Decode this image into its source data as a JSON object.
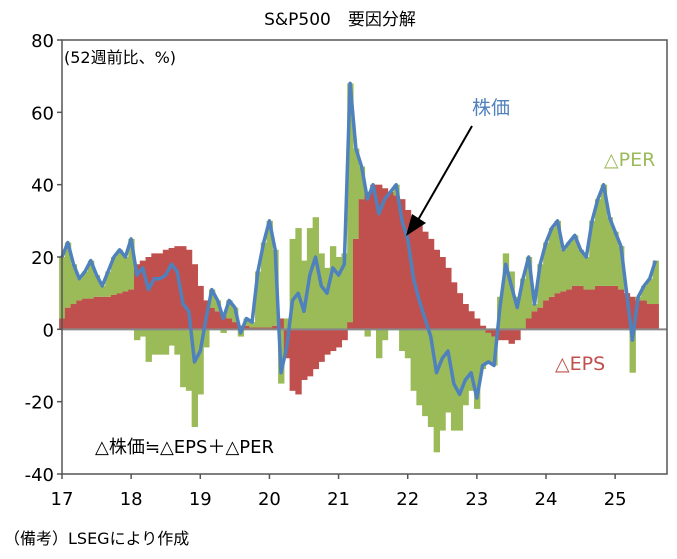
{
  "chart_data": {
    "type": "bar",
    "title": "S&P500　要因分解",
    "unit_note": "(52週前比、%)",
    "ylim": [
      -40,
      80
    ],
    "y_ticks": [
      "80",
      "60",
      "40",
      "20",
      "0",
      "-20",
      "-40"
    ],
    "y_tick_values": [
      80,
      60,
      40,
      20,
      0,
      -20,
      -40
    ],
    "x_ticks": [
      "17",
      "18",
      "19",
      "20",
      "21",
      "22",
      "23",
      "24",
      "25"
    ],
    "x_tick_values": [
      2017,
      2018,
      2019,
      2020,
      2021,
      2022,
      2023,
      2024,
      2025
    ],
    "xlim": [
      2017,
      2025.75
    ],
    "x_start": 2017,
    "x_step_months": 1,
    "series": [
      {
        "name": "株価",
        "kind": "line",
        "color": "#4f81bd",
        "values": [
          20,
          24,
          18,
          14,
          16,
          19,
          15,
          12,
          16,
          20,
          22,
          20,
          25,
          15,
          17,
          11,
          14,
          14,
          15,
          18,
          16,
          7,
          5,
          -9,
          -6,
          3,
          11,
          8,
          3,
          8,
          6,
          -1,
          3,
          2,
          16,
          24,
          30,
          22,
          -12,
          -5,
          8,
          10,
          5,
          15,
          20,
          12,
          10,
          17,
          15,
          18,
          68,
          50,
          45,
          36,
          40,
          32,
          36,
          38,
          40,
          30,
          25,
          14,
          8,
          3,
          -2,
          -12,
          -8,
          -6,
          -15,
          -18,
          -14,
          -12,
          -19,
          -10,
          -9,
          -10,
          6,
          18,
          12,
          6,
          14,
          20,
          7,
          18,
          24,
          28,
          30,
          22,
          24,
          26,
          22,
          20,
          30,
          36,
          40,
          31,
          27,
          23,
          10,
          -3,
          9,
          12,
          14,
          19
        ]
      },
      {
        "name": "△EPS",
        "kind": "bar",
        "color": "#c0504d",
        "values": [
          3,
          6,
          7,
          8,
          8.5,
          8.5,
          9,
          9,
          9,
          9.5,
          10,
          10.5,
          11,
          18,
          19,
          20,
          21,
          21,
          22,
          22.5,
          23,
          23,
          22,
          18,
          12,
          8,
          6,
          5,
          4,
          3,
          2,
          1,
          1,
          0.5,
          0.5,
          0.5,
          0.5,
          1,
          3,
          -8,
          -17,
          -18,
          -14,
          -13,
          -11,
          -9,
          -7,
          -6,
          -5,
          -3,
          2,
          25,
          36,
          38,
          40,
          40,
          39,
          38,
          37,
          36,
          33,
          31,
          29,
          27,
          25,
          22,
          20,
          17,
          13,
          10,
          7,
          5,
          3,
          1,
          -1,
          -2,
          -3,
          -3,
          -4,
          -3,
          0,
          3,
          5,
          6,
          8,
          9,
          10,
          10.5,
          11,
          12,
          12,
          11,
          11,
          12,
          12,
          12,
          12,
          11,
          10,
          9,
          8,
          8,
          7,
          7
        ]
      },
      {
        "name": "△PER",
        "kind": "bar",
        "color": "#9bbb59",
        "derived": "株価 − △EPS"
      }
    ],
    "annotations": {
      "price_label": "株価",
      "per_label": "△PER",
      "eps_label": "△EPS",
      "formula": "△株価≒△EPS＋△PER"
    },
    "source": "（備考）LSEGにより作成"
  }
}
